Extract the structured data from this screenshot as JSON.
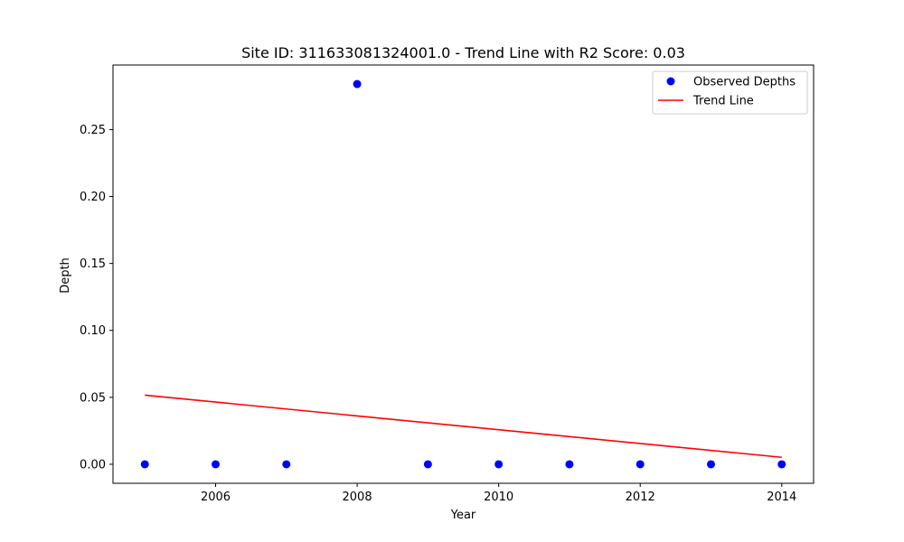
{
  "chart_data": {
    "type": "scatter",
    "title": "Site ID: 311633081324001.0 - Trend Line with R2 Score: 0.03",
    "xlabel": "Year",
    "ylabel": "Depth",
    "xlim": [
      2004.55,
      2014.45
    ],
    "ylim": [
      -0.0142,
      0.2982
    ],
    "xticks": [
      2006,
      2008,
      2010,
      2012,
      2014
    ],
    "xtick_labels": [
      "2006",
      "2008",
      "2010",
      "2012",
      "2014"
    ],
    "yticks": [
      0.0,
      0.05,
      0.1,
      0.15,
      0.2,
      0.25
    ],
    "ytick_labels": [
      "0.00",
      "0.05",
      "0.10",
      "0.15",
      "0.20",
      "0.25"
    ],
    "grid": false,
    "legend_position": "top-right",
    "series": [
      {
        "name": "Observed Depths",
        "kind": "scatter",
        "color": "#0000ff",
        "x": [
          2005,
          2006,
          2007,
          2008,
          2009,
          2010,
          2011,
          2012,
          2013,
          2014
        ],
        "y": [
          0.0,
          0.0,
          0.0,
          0.284,
          0.0,
          0.0,
          0.0,
          0.0,
          0.0,
          0.0
        ]
      },
      {
        "name": "Trend Line",
        "kind": "line",
        "color": "#ff0000",
        "x": [
          2005,
          2014
        ],
        "y": [
          0.0516,
          0.0052
        ]
      }
    ]
  }
}
